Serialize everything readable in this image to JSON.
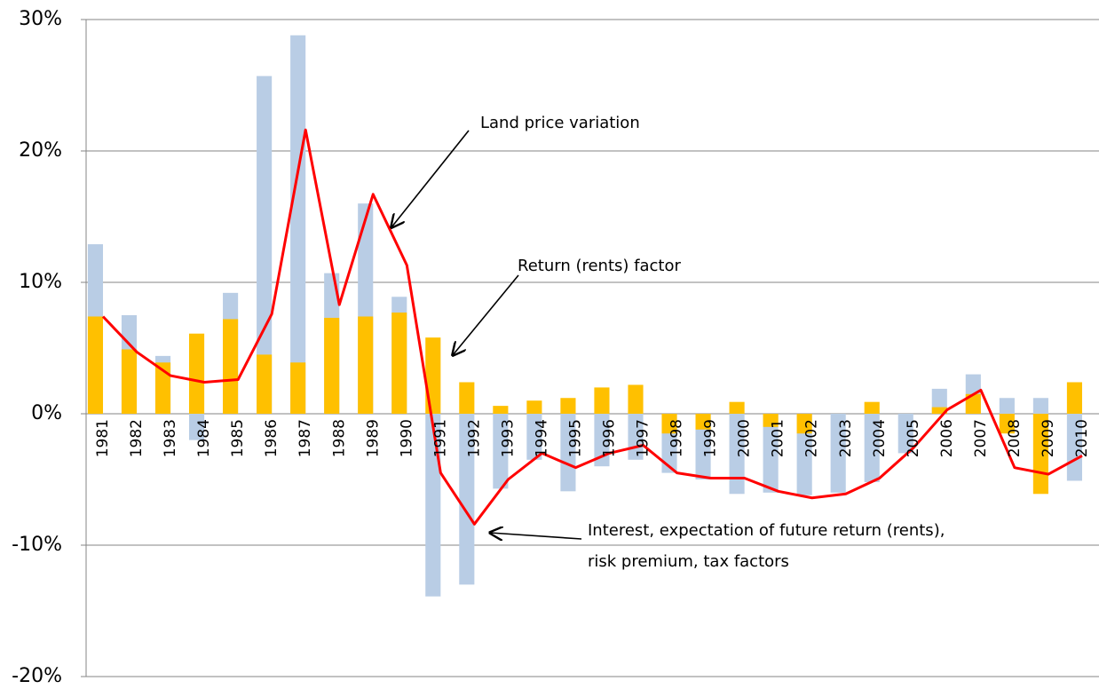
{
  "chart_data": {
    "type": "bar",
    "categories": [
      "1981",
      "1982",
      "1983",
      "1984",
      "1985",
      "1986",
      "1987",
      "1988",
      "1989",
      "1990",
      "1991",
      "1992",
      "1993",
      "1994",
      "1995",
      "1996",
      "1997",
      "1998",
      "1999",
      "2000",
      "2001",
      "2002",
      "2003",
      "2004",
      "2005",
      "2006",
      "2007",
      "2008",
      "2009",
      "2010"
    ],
    "series": [
      {
        "type": "bar",
        "color": "#b9cde5",
        "values": [
          12.9,
          7.5,
          4.4,
          -2,
          9.2,
          25.7,
          28.8,
          10.7,
          16.0,
          8.9,
          -13.9,
          -13.0,
          -5.7,
          -3.5,
          -5.9,
          -4,
          -3.5,
          -4.5,
          -5,
          -6.1,
          -6,
          -6.2,
          -6,
          -5.2,
          -3,
          1.9,
          3.0,
          1.2,
          1.2,
          -5.1
        ]
      },
      {
        "type": "bar",
        "color": "#ffc000",
        "values": [
          7.4,
          4.9,
          3.9,
          6.1,
          7.2,
          4.5,
          3.9,
          7.3,
          7.4,
          7.7,
          5.8,
          2.4,
          0.6,
          1.0,
          1.2,
          2.0,
          2.2,
          -1.5,
          -1.2,
          0.9,
          -1.0,
          -1.5,
          0,
          0.9,
          0,
          0.5,
          1.5,
          -1.5,
          -6.1,
          2.4
        ]
      },
      {
        "type": "line",
        "color": "#ff0000",
        "values": [
          7.4,
          4.7,
          2.9,
          2.4,
          2.6,
          7.6,
          21.6,
          8.3,
          16.7,
          11.3,
          -4.5,
          -8.4,
          -5.0,
          -3.0,
          -4.1,
          -3.0,
          -2.4,
          -4.5,
          -4.9,
          -4.9,
          -5.9,
          -6.4,
          -6.1,
          -4.9,
          -2.6,
          0.3,
          1.8,
          -4.1,
          -4.6,
          -3.2
        ]
      }
    ],
    "ylim": [
      -20,
      30
    ],
    "yticks": [
      {
        "value": -20,
        "label": "-20%"
      },
      {
        "value": -10,
        "label": "-10%"
      },
      {
        "value": 0,
        "label": "0%"
      },
      {
        "value": 10,
        "label": "10%"
      },
      {
        "value": 20,
        "label": "20%"
      },
      {
        "value": 30,
        "label": "30%"
      }
    ],
    "grid": true,
    "annotations": [
      {
        "lines": [
          "Land price variation"
        ]
      },
      {
        "lines": [
          "Return (rents)  factor"
        ]
      },
      {
        "lines": [
          "Interest, expectation of future return (rents),",
          "risk premium, tax factors"
        ]
      }
    ]
  }
}
